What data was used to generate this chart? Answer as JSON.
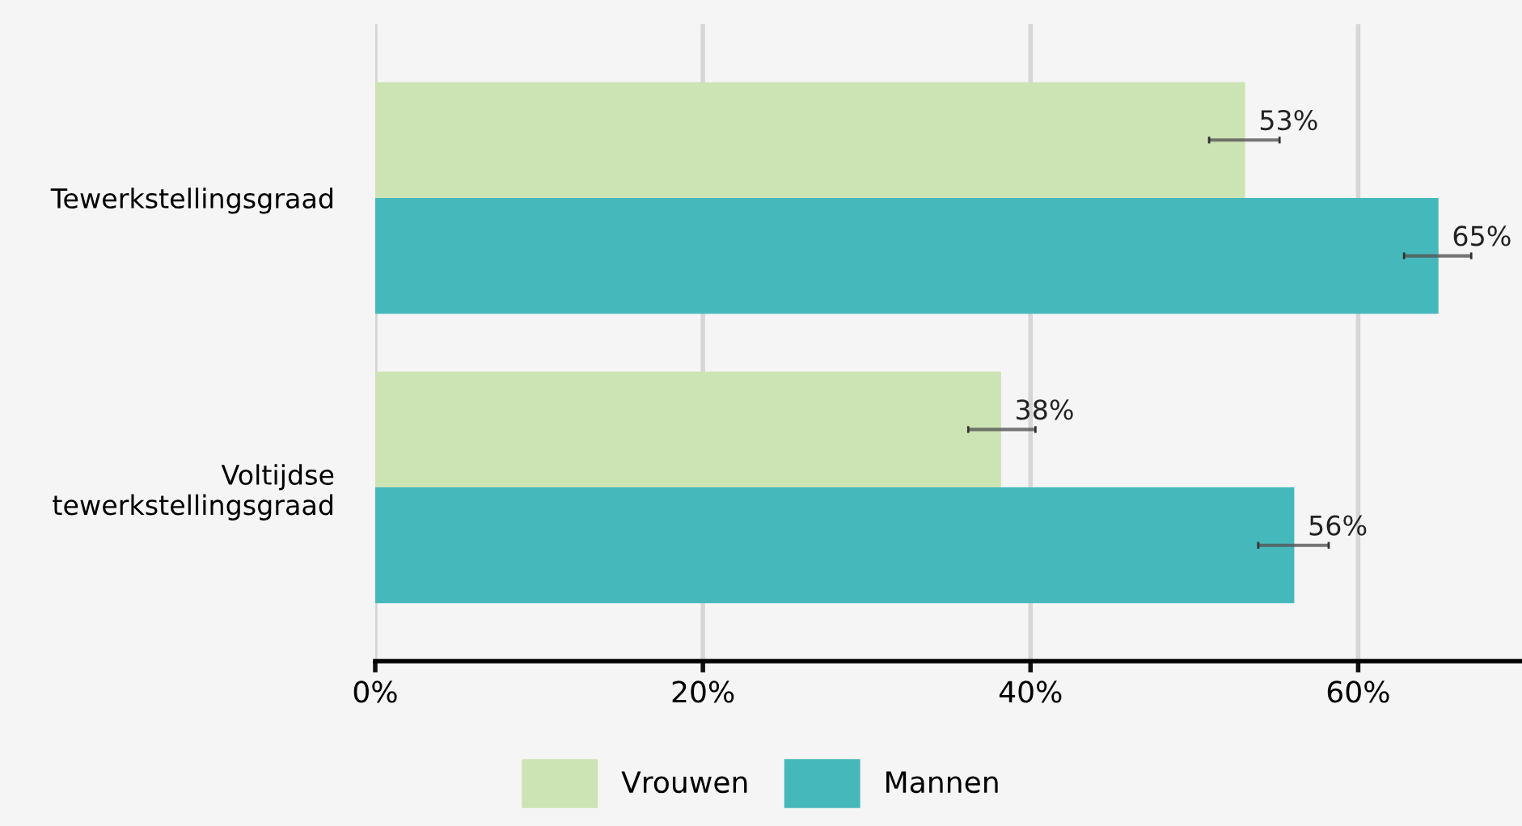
{
  "chart_data": {
    "type": "bar",
    "orientation": "horizontal",
    "categories": [
      "Tewerkstellingsgraad",
      "Voltijdse\ntewerkstellingsgraad"
    ],
    "series": [
      {
        "name": "Vrouwen",
        "color": "#cce3b3",
        "values": [
          53.1,
          38.2
        ],
        "errors": [
          [
            50.9,
            55.2
          ],
          [
            36.2,
            40.3
          ]
        ],
        "value_labels": [
          "53%",
          "38%"
        ]
      },
      {
        "name": "Mannen",
        "color": "#45b8bc",
        "values": [
          64.9,
          56.1
        ],
        "errors": [
          [
            62.8,
            66.9
          ],
          [
            53.9,
            58.2
          ]
        ],
        "value_labels": [
          "65%",
          "56%"
        ]
      }
    ],
    "xlim": [
      0,
      70
    ],
    "xticks": [
      {
        "value": 0,
        "label": "0%"
      },
      {
        "value": 20,
        "label": "20%"
      },
      {
        "value": 40,
        "label": "40%"
      },
      {
        "value": 60,
        "label": "60%"
      }
    ],
    "grid": "x",
    "legend": "bottom"
  }
}
